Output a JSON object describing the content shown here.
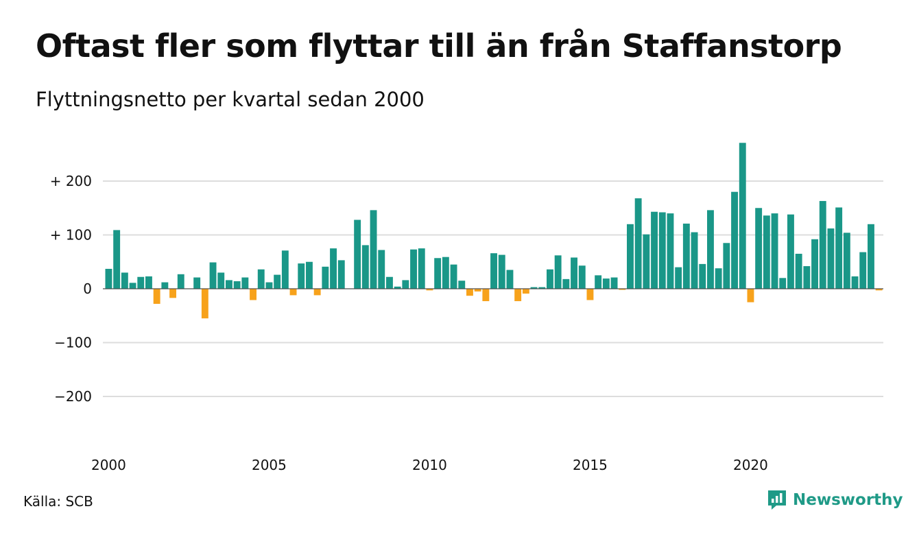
{
  "title": "Oftast fler som flyttar till än från Staffanstorp",
  "subtitle": "Flyttningsnetto per kvartal sedan 2000",
  "source": "Källa: SCB",
  "brand": "Newsworthy",
  "colors": {
    "positive": "#1a9788",
    "negative": "#f7a21b",
    "grid": "#dddddd"
  },
  "chart_data": {
    "type": "bar",
    "title": "Oftast fler som flyttar till än från Staffanstorp",
    "subtitle": "Flyttningsnetto per kvartal sedan 2000",
    "ylim": [
      -270,
      275
    ],
    "y_ticks": [
      200,
      100,
      0,
      -100,
      -200
    ],
    "y_tick_labels": [
      "+ 200",
      "+ 100",
      "0",
      "−100",
      "−200"
    ],
    "x_ticks": [
      2000,
      2005,
      2010,
      2015,
      2020
    ],
    "x_tick_labels": [
      "2000",
      "2005",
      "2010",
      "2015",
      "2020"
    ],
    "x_start": 2000,
    "periods_per_year": 4,
    "grid": true,
    "values": [
      37,
      109,
      30,
      11,
      22,
      23,
      -28,
      12,
      -17,
      27,
      0,
      21,
      -55,
      49,
      30,
      16,
      14,
      21,
      -21,
      36,
      12,
      26,
      71,
      -12,
      47,
      50,
      -12,
      41,
      75,
      53,
      0,
      128,
      81,
      146,
      72,
      22,
      4,
      16,
      73,
      75,
      -3,
      57,
      59,
      45,
      15,
      -13,
      -5,
      -23,
      66,
      63,
      35,
      -23,
      -9,
      3,
      3,
      36,
      62,
      18,
      58,
      43,
      -21,
      25,
      19,
      21,
      -2,
      120,
      168,
      101,
      143,
      142,
      140,
      40,
      121,
      105,
      46,
      146,
      38,
      85,
      180,
      271,
      -25,
      150,
      136,
      140,
      20,
      138,
      65,
      42,
      92,
      163,
      112,
      151,
      104,
      23,
      68,
      120,
      -3
    ]
  }
}
